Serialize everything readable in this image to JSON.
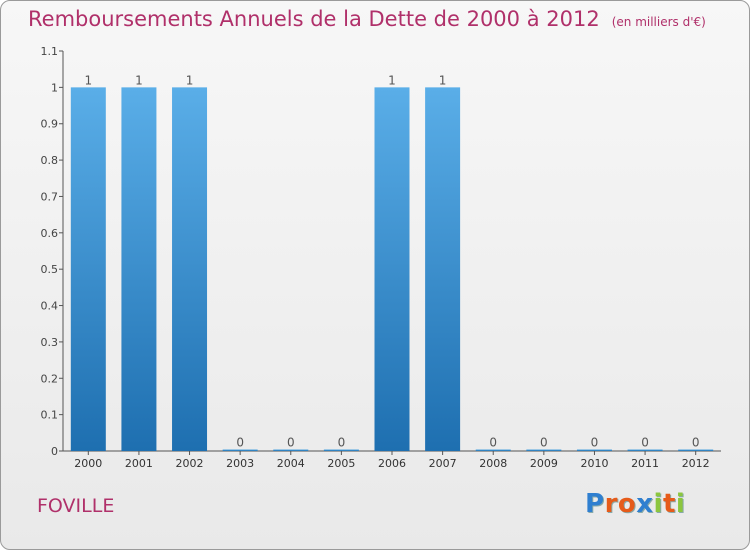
{
  "header": {
    "title": "Remboursements Annuels de la Dette de 2000 à 2012",
    "unit": "(en milliers d'€)"
  },
  "footer": {
    "commune": "FOVILLE",
    "brand": "Proxiti",
    "brand_colors": [
      "#2f7fd0",
      "#e65b1a",
      "#e65b1a",
      "#2f7fd0",
      "#8cc63f",
      "#e65b1a",
      "#8cc63f"
    ]
  },
  "colors": {
    "title": "#b0306a",
    "bar_top": "#5aaee8",
    "bar_bottom": "#1e6fb0",
    "axis": "#555555"
  },
  "chart_data": {
    "type": "bar",
    "title": "Remboursements Annuels de la Dette de 2000 à 2012",
    "subtitle": "(en milliers d'€)",
    "xlabel": "",
    "ylabel": "",
    "categories": [
      "2000",
      "2001",
      "2002",
      "2003",
      "2004",
      "2005",
      "2006",
      "2007",
      "2008",
      "2009",
      "2010",
      "2011",
      "2012"
    ],
    "values": [
      1,
      1,
      1,
      0,
      0,
      0,
      1,
      1,
      0,
      0,
      0,
      0,
      0
    ],
    "value_labels": [
      "1",
      "1",
      "1",
      "0",
      "0",
      "0",
      "1",
      "1",
      "0",
      "0",
      "0",
      "0",
      "0"
    ],
    "ylim": [
      0,
      1.1
    ],
    "yticks": [
      "0",
      "0.1",
      "0.2",
      "0.3",
      "0.4",
      "0.5",
      "0.6",
      "0.7",
      "0.8",
      "0.9",
      "1",
      "1.1"
    ],
    "grid": false,
    "legend": "none"
  }
}
